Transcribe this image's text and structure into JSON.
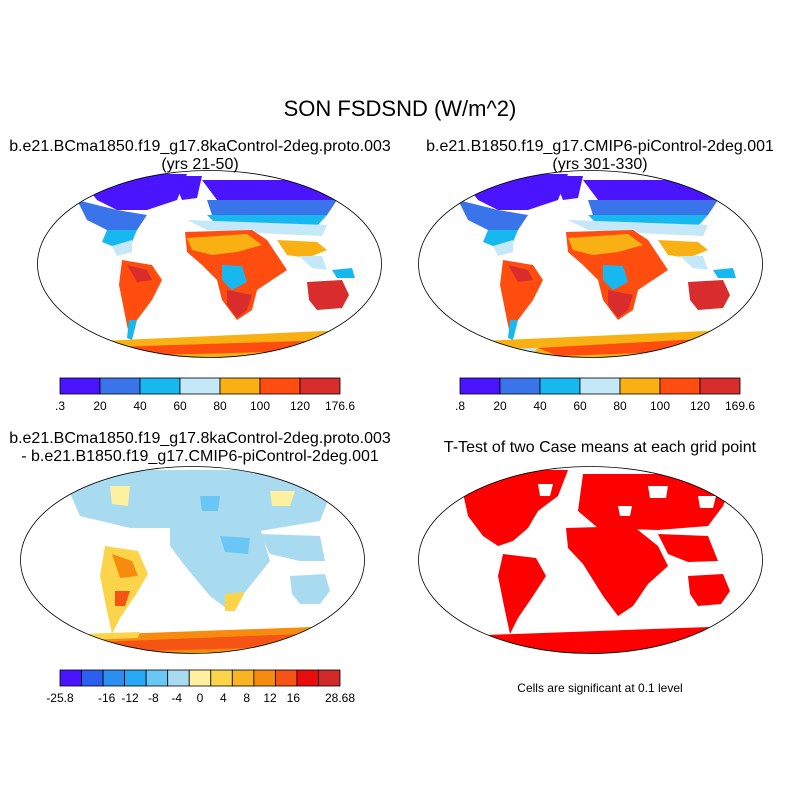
{
  "title": "SON FSDSND (W/m^2)",
  "panels": [
    {
      "id": "case1",
      "title_line1": "b.e21.BCma1850.f19_g17.8kaControl-2deg.proto.003",
      "title_line2": "(yrs 21-50)",
      "colorbar": {
        "colors": [
          "#4a14ff",
          "#3a74ea",
          "#17b8f0",
          "#c4e8f8",
          "#f9b012",
          "#ff4c0f",
          "#d92d2d"
        ],
        "labels": [
          ".3",
          "20",
          "40",
          "60",
          "80",
          "100",
          "120",
          "176.6"
        ]
      }
    },
    {
      "id": "case2",
      "title_line1": "b.e21.B1850.f19_g17.CMIP6-piControl-2deg.001",
      "title_line2": "(yrs 301-330)",
      "colorbar": {
        "colors": [
          "#4a14ff",
          "#3a74ea",
          "#17b8f0",
          "#c4e8f8",
          "#f9b012",
          "#ff4c0f",
          "#d92d2d"
        ],
        "labels": [
          ".8",
          "20",
          "40",
          "60",
          "80",
          "100",
          "120",
          "169.6"
        ]
      }
    },
    {
      "id": "diff",
      "title_line1": "b.e21.BCma1850.f19_g17.8kaControl-2deg.proto.003",
      "title_line2": "- b.e21.B1850.f19_g17.CMIP6-piControl-2deg.001",
      "colorbar": {
        "colors": [
          "#4a14ff",
          "#2c5ff0",
          "#2a8ff0",
          "#29a9f5",
          "#69c6f5",
          "#a8daf0",
          "#fff1a0",
          "#fcd44a",
          "#f8b422",
          "#f78b0f",
          "#f55414",
          "#e80c0c",
          "#d02a2a"
        ],
        "labels": [
          "-25.8",
          "",
          "-16",
          "-12",
          "-8",
          "-4",
          "0",
          "4",
          "8",
          "12",
          "16",
          "",
          "28.68"
        ]
      }
    },
    {
      "id": "ttest",
      "title_line1": "T-Test of two Case means at each grid point",
      "note": "Cells are significant at 0.1 level"
    }
  ],
  "colors": {
    "significant": "#ff0000",
    "coast": "#000000"
  }
}
